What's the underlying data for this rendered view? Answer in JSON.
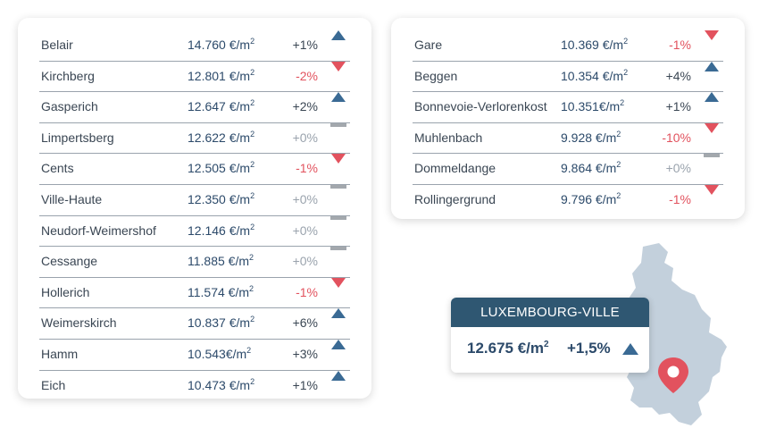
{
  "left_table": [
    {
      "name": "Belair",
      "price": "14.760 €/m",
      "sup": "2",
      "change": "+1%",
      "trend": "up"
    },
    {
      "name": "Kirchberg",
      "price": "12.801 €/m",
      "sup": "2",
      "change": "-2%",
      "trend": "down"
    },
    {
      "name": "Gasperich",
      "price": "12.647 €/m",
      "sup": "2",
      "change": "+2%",
      "trend": "up"
    },
    {
      "name": "Limpertsberg",
      "price": "12.622 €/m",
      "sup": "2",
      "change": "+0%",
      "trend": "flat"
    },
    {
      "name": "Cents",
      "price": "12.505 €/m",
      "sup": "2",
      "change": "-1%",
      "trend": "down"
    },
    {
      "name": "Ville-Haute",
      "price": "12.350 €/m",
      "sup": "2",
      "change": "+0%",
      "trend": "flat"
    },
    {
      "name": "Neudorf-Weimershof",
      "price": "12.146 €/m",
      "sup": "2",
      "change": "+0%",
      "trend": "flat"
    },
    {
      "name": "Cessange",
      "price": "11.885 €/m",
      "sup": "2",
      "change": "+0%",
      "trend": "flat"
    },
    {
      "name": "Hollerich",
      "price": "11.574 €/m",
      "sup": "2",
      "change": "-1%",
      "trend": "down"
    },
    {
      "name": "Weimerskirch",
      "price": "10.837 €/m",
      "sup": "2",
      "change": "+6%",
      "trend": "up"
    },
    {
      "name": "Hamm",
      "price": "10.543€/m",
      "sup": "2",
      "change": "+3%",
      "trend": "up"
    },
    {
      "name": "Eich",
      "price": "10.473 €/m",
      "sup": "2",
      "change": "+1%",
      "trend": "up"
    }
  ],
  "right_table": [
    {
      "name": "Gare",
      "price": "10.369 €/m",
      "sup": "2",
      "change": "-1%",
      "trend": "down"
    },
    {
      "name": "Beggen",
      "price": "10.354 €/m",
      "sup": "2",
      "change": "+4%",
      "trend": "up"
    },
    {
      "name": "Bonnevoie-Verlorenkost",
      "price": "10.351€/m",
      "sup": "2",
      "change": "+1%",
      "trend": "up"
    },
    {
      "name": "Muhlenbach",
      "price": "9.928 €/m",
      "sup": "2",
      "change": "-10%",
      "trend": "down"
    },
    {
      "name": "Dommeldange",
      "price": "9.864 €/m",
      "sup": "2",
      "change": "+0%",
      "trend": "flat"
    },
    {
      "name": "Rollingergrund",
      "price": "9.796 €/m",
      "sup": "2",
      "change": "-1%",
      "trend": "down"
    }
  ],
  "summary": {
    "title": "LUXEMBOURG-VILLE",
    "price": "12.675 €/m",
    "sup": "2",
    "change": "+1,5%",
    "trend": "up"
  },
  "icons": {
    "up": "triangle-up-icon",
    "down": "triangle-down-icon",
    "flat": "dash-icon",
    "pin": "map-pin-icon"
  },
  "colors": {
    "up": "#3a6a94",
    "down": "#e2525e",
    "flat": "#a3a8ad",
    "header": "#2f5772",
    "map": "#c3d0dc"
  }
}
